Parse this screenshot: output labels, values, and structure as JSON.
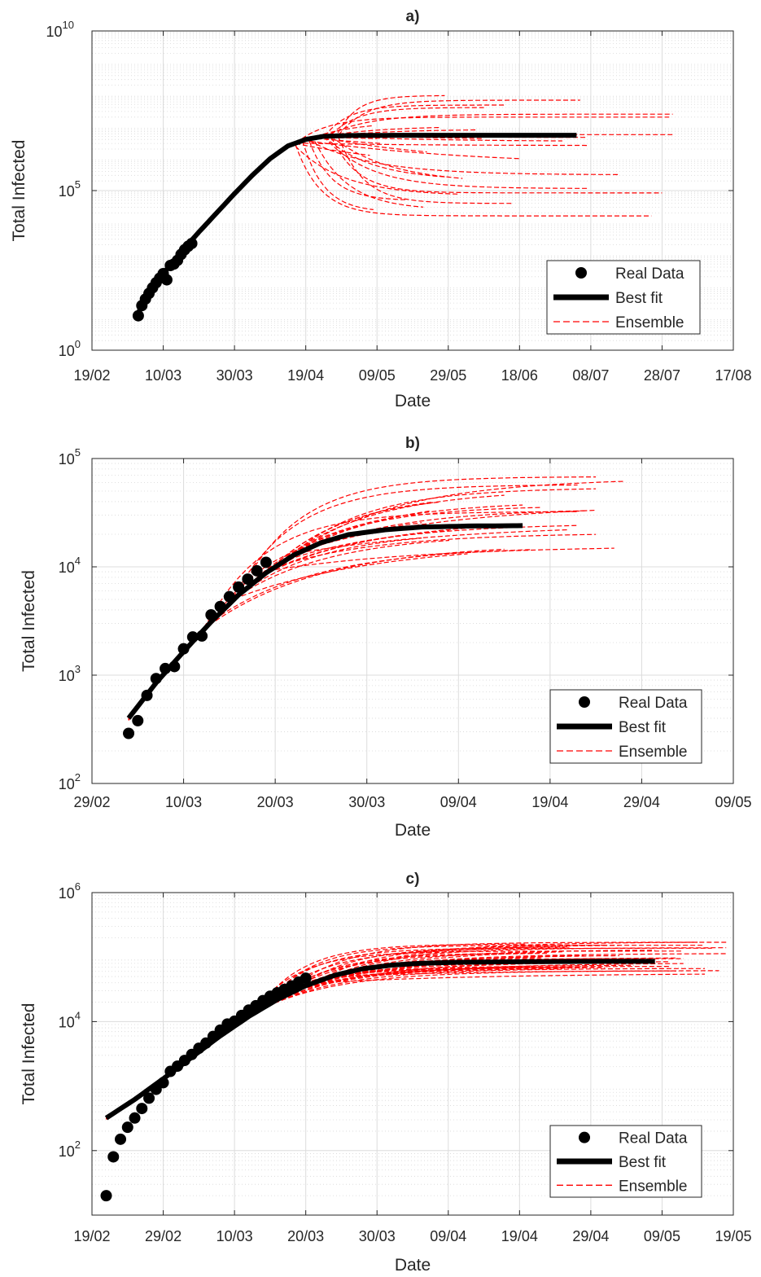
{
  "chart_data": [
    {
      "type": "line",
      "title": "a)",
      "xlabel": "Date",
      "ylabel": "Total Infected",
      "yscale": "log",
      "ylim": [
        1,
        10000000000
      ],
      "xlim": [
        "19/02",
        "17/08"
      ],
      "x_ticks": [
        "19/02",
        "10/03",
        "30/03",
        "19/04",
        "09/05",
        "29/05",
        "18/06",
        "08/07",
        "28/07",
        "17/08"
      ],
      "y_ticks": [
        {
          "base": "10",
          "exp": "0",
          "value": 1
        },
        {
          "base": "10",
          "exp": "5",
          "value": 100000
        },
        {
          "base": "10",
          "exp": "10",
          "value": 10000000000
        }
      ],
      "grid": true,
      "legend": {
        "placement": "bottom-right",
        "entries": [
          "Real Data",
          "Best fit",
          "Ensemble"
        ]
      },
      "colors": {
        "real": "#000000",
        "best": "#000000",
        "ensemble": "#ff0000"
      },
      "real_data": {
        "x": [
          "03/03",
          "04/03",
          "05/03",
          "06/03",
          "07/03",
          "08/03",
          "09/03",
          "10/03",
          "11/03",
          "12/03",
          "13/03",
          "14/03",
          "15/03",
          "16/03",
          "17/03",
          "18/03"
        ],
        "y": [
          12,
          25,
          40,
          60,
          90,
          130,
          180,
          250,
          160,
          450,
          500,
          650,
          1000,
          1400,
          1800,
          2200
        ]
      },
      "best_fit": {
        "x": [
          "03/03",
          "06/03",
          "10/03",
          "15/03",
          "20/03",
          "25/03",
          "30/03",
          "04/04",
          "09/04",
          "14/04",
          "19/04",
          "24/04",
          "01/05",
          "15/05",
          "01/06",
          "20/06",
          "04/07"
        ],
        "y": [
          15,
          60,
          250,
          1200,
          5000,
          20000,
          80000,
          300000,
          1000000,
          2500000,
          4000000,
          5000000,
          5300000,
          5400000,
          5400000,
          5400000,
          5400000
        ]
      },
      "ensemble": {
        "start": "03/03",
        "start_value": 15,
        "growth_until": "27/04",
        "end_range": [
          "01/05",
          "02/08"
        ],
        "plateau_range": [
          15000,
          90000000
        ],
        "count": 30
      }
    },
    {
      "type": "line",
      "title": "b)",
      "xlabel": "Date",
      "ylabel": "Total Infected",
      "yscale": "log",
      "ylim": [
        100,
        100000
      ],
      "xlim": [
        "29/02",
        "09/05"
      ],
      "x_ticks": [
        "29/02",
        "10/03",
        "20/03",
        "30/03",
        "09/04",
        "19/04",
        "29/04",
        "09/05"
      ],
      "y_ticks": [
        {
          "base": "10",
          "exp": "2",
          "value": 100
        },
        {
          "base": "10",
          "exp": "3",
          "value": 1000
        },
        {
          "base": "10",
          "exp": "4",
          "value": 10000
        },
        {
          "base": "10",
          "exp": "5",
          "value": 100000
        }
      ],
      "grid": true,
      "legend": {
        "placement": "bottom-right",
        "entries": [
          "Real Data",
          "Best fit",
          "Ensemble"
        ]
      },
      "colors": {
        "real": "#000000",
        "best": "#000000",
        "ensemble": "#ff0000"
      },
      "real_data": {
        "x": [
          "04/03",
          "05/03",
          "06/03",
          "07/03",
          "08/03",
          "09/03",
          "10/03",
          "11/03",
          "12/03",
          "13/03",
          "14/03",
          "15/03",
          "16/03",
          "17/03",
          "18/03",
          "19/03"
        ],
        "y": [
          290,
          380,
          650,
          930,
          1150,
          1200,
          1750,
          2250,
          2300,
          3600,
          4300,
          5300,
          6500,
          7700,
          9200,
          11000
        ]
      },
      "best_fit": {
        "x": [
          "04/03",
          "07/03",
          "10/03",
          "13/03",
          "16/03",
          "19/03",
          "22/03",
          "25/03",
          "28/03",
          "01/04",
          "05/04",
          "10/04",
          "16/04"
        ],
        "y": [
          400,
          850,
          1650,
          3100,
          5500,
          8800,
          12800,
          16700,
          19800,
          22000,
          23300,
          23800,
          24000
        ]
      },
      "ensemble": {
        "start": "04/03",
        "start_value": 400,
        "growth_until": "23/03",
        "end_range": [
          "05/04",
          "01/05"
        ],
        "plateau_range": [
          15000,
          66000
        ],
        "count": 26
      }
    },
    {
      "type": "line",
      "title": "c)",
      "xlabel": "Date",
      "ylabel": "Total Infected",
      "yscale": "log",
      "ylim": [
        10,
        1000000
      ],
      "xlim": [
        "19/02",
        "19/05"
      ],
      "x_ticks": [
        "19/02",
        "29/02",
        "10/03",
        "20/03",
        "30/03",
        "09/04",
        "19/04",
        "29/04",
        "09/05",
        "19/05"
      ],
      "y_ticks": [
        {
          "base": "10",
          "exp": "2",
          "value": 100
        },
        {
          "base": "10",
          "exp": "4",
          "value": 10000
        },
        {
          "base": "10",
          "exp": "6",
          "value": 1000000
        }
      ],
      "grid": true,
      "legend": {
        "placement": "bottom-right",
        "entries": [
          "Real Data",
          "Best fit",
          "Ensemble"
        ]
      },
      "colors": {
        "real": "#000000",
        "best": "#000000",
        "ensemble": "#ff0000"
      },
      "real_data": {
        "x": [
          "21/02",
          "22/02",
          "23/02",
          "24/02",
          "25/02",
          "26/02",
          "27/02",
          "28/02",
          "29/02",
          "01/03",
          "02/03",
          "03/03",
          "04/03",
          "05/03",
          "06/03",
          "07/03",
          "08/03",
          "09/03",
          "10/03",
          "11/03",
          "12/03",
          "13/03",
          "14/03",
          "15/03",
          "16/03",
          "17/03",
          "18/03",
          "19/03",
          "20/03"
        ],
        "y": [
          20,
          80,
          150,
          230,
          320,
          450,
          650,
          890,
          1130,
          1690,
          2040,
          2500,
          3090,
          3860,
          4640,
          5880,
          7380,
          9170,
          10150,
          12460,
          15110,
          17660,
          21160,
          24750,
          27980,
          31510,
          35710,
          41040,
          47020
        ]
      },
      "best_fit": {
        "x": [
          "21/02",
          "25/02",
          "29/02",
          "04/03",
          "08/03",
          "12/03",
          "16/03",
          "20/03",
          "24/03",
          "28/03",
          "01/04",
          "05/04",
          "10/04",
          "20/04",
          "01/05",
          "08/05"
        ],
        "y": [
          320,
          620,
          1300,
          2800,
          6000,
          12000,
          22000,
          36000,
          52000,
          66000,
          75000,
          80000,
          83000,
          85000,
          86000,
          86000
        ]
      },
      "ensemble": {
        "start": "21/02",
        "start_value": 280,
        "growth_until": "24/03",
        "end_range": [
          "20/04",
          "19/05"
        ],
        "plateau_range": [
          60000,
          175000
        ],
        "count": 40
      }
    }
  ]
}
